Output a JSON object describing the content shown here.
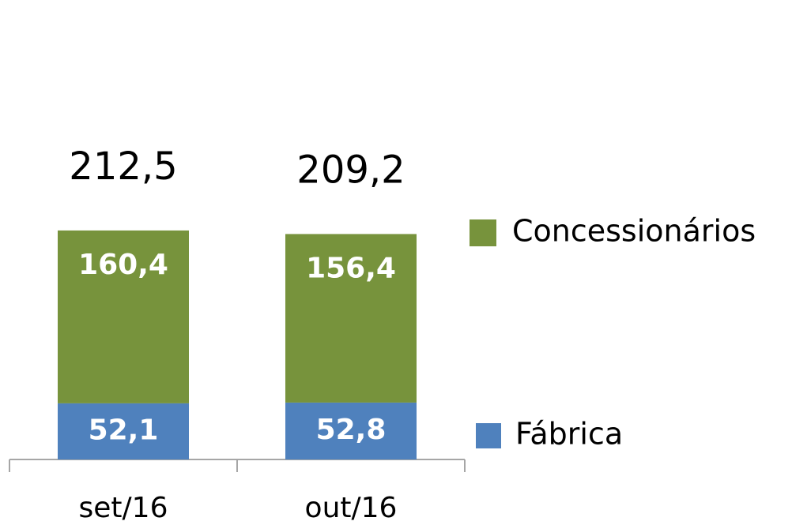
{
  "chart_data": {
    "type": "stacked_bar",
    "categories": [
      "set/16",
      "out/16"
    ],
    "series": [
      {
        "name": "Fábrica",
        "color": "#4f81bd",
        "values": [
          52.1,
          52.8
        ],
        "value_labels": [
          "52,1",
          "52,8"
        ]
      },
      {
        "name": "Concessionários",
        "color": "#77933c",
        "values": [
          160.4,
          156.4
        ],
        "value_labels": [
          "160,4",
          "156,4"
        ]
      }
    ],
    "totals": {
      "values": [
        212.5,
        209.2
      ],
      "value_labels": [
        "212,5",
        "209,2"
      ]
    }
  }
}
